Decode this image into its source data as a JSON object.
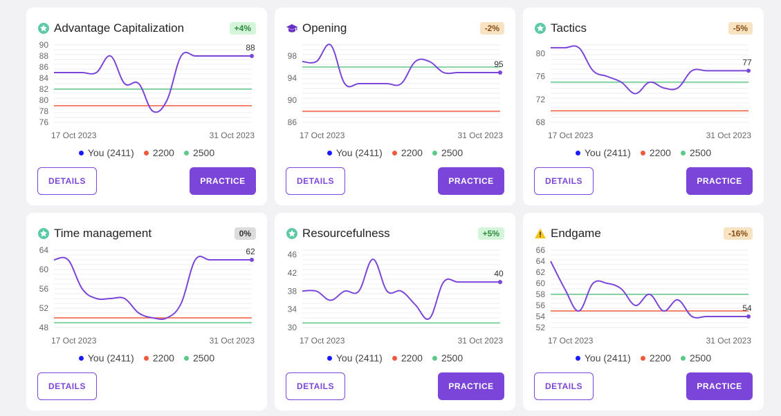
{
  "legend": {
    "you": "You (2411)",
    "r2200": "2200",
    "r2500": "2500",
    "colors": {
      "you": "#1a1aff",
      "r2200": "#f05a3c",
      "r2500": "#5cc98a"
    }
  },
  "buttons": {
    "details": "DETAILS",
    "practice": "PRACTICE"
  },
  "colors": {
    "line": "#7a45d8",
    "ref2200": "#f05a3c",
    "ref2500": "#5cc98a"
  },
  "cards": [
    {
      "title": "Advantage Capitalization",
      "icon": "star-badge-icon",
      "badge": "+4%",
      "badge_kind": "pos",
      "has_practice": true,
      "chart_data": {
        "type": "line",
        "x_start": "17 Oct 2023",
        "x_end": "31 Oct 2023",
        "yticks": [
          76,
          78,
          80,
          82,
          84,
          86,
          88,
          90
        ],
        "ylim": [
          76,
          90
        ],
        "values": [
          85,
          85,
          85,
          85,
          88,
          83,
          83,
          78,
          80,
          88,
          88,
          88,
          88,
          88,
          88
        ],
        "ref2200": 79,
        "ref2500": 82,
        "last_label": "88"
      }
    },
    {
      "title": "Opening",
      "icon": "graduation-cap-icon",
      "badge": "-2%",
      "badge_kind": "neg",
      "has_practice": true,
      "chart_data": {
        "type": "line",
        "x_start": "17 Oct 2023",
        "x_end": "31 Oct 2023",
        "yticks": [
          86,
          90,
          94,
          98
        ],
        "ylim": [
          86,
          100
        ],
        "values": [
          97,
          97,
          100,
          93,
          93,
          93,
          93,
          93,
          97,
          97,
          95,
          95,
          95,
          95,
          95
        ],
        "ref2200": 88,
        "ref2500": 96,
        "last_label": "95"
      }
    },
    {
      "title": "Tactics",
      "icon": "star-badge-icon",
      "badge": "-5%",
      "badge_kind": "neg",
      "has_practice": true,
      "chart_data": {
        "type": "line",
        "x_start": "17 Oct 2023",
        "x_end": "31 Oct 2023",
        "yticks": [
          68,
          72,
          76,
          80
        ],
        "ylim": [
          68,
          81.5
        ],
        "values": [
          81,
          81,
          81,
          77,
          76,
          75,
          73,
          75,
          74,
          74,
          77,
          77,
          77,
          77,
          77
        ],
        "ref2200": 70,
        "ref2500": 75,
        "last_label": "77"
      }
    },
    {
      "title": "Time management",
      "icon": "star-badge-icon",
      "badge": "0%",
      "badge_kind": "neu",
      "has_practice": false,
      "chart_data": {
        "type": "line",
        "x_start": "17 Oct 2023",
        "x_end": "31 Oct 2023",
        "yticks": [
          48,
          52,
          56,
          60,
          64
        ],
        "ylim": [
          48,
          64
        ],
        "values": [
          62,
          62,
          56,
          54,
          54,
          54,
          51,
          50,
          50,
          53,
          62,
          62,
          62,
          62,
          62
        ],
        "ref2200": 50,
        "ref2500": 49,
        "last_label": "62"
      }
    },
    {
      "title": "Resourcefulness",
      "icon": "star-badge-icon",
      "badge": "+5%",
      "badge_kind": "pos",
      "has_practice": true,
      "chart_data": {
        "type": "line",
        "x_start": "17 Oct 2023",
        "x_end": "31 Oct 2023",
        "yticks": [
          30,
          34,
          38,
          42,
          46
        ],
        "ylim": [
          30,
          47
        ],
        "values": [
          38,
          38,
          36,
          38,
          38,
          45,
          38,
          38,
          35,
          32,
          40,
          40,
          40,
          40,
          40
        ],
        "ref2200": null,
        "ref2500": 31,
        "last_label": "40"
      }
    },
    {
      "title": "Endgame",
      "icon": "warning-icon",
      "badge": "-16%",
      "badge_kind": "neg",
      "has_practice": true,
      "chart_data": {
        "type": "line",
        "x_start": "17 Oct 2023",
        "x_end": "31 Oct 2023",
        "yticks": [
          52,
          54,
          56,
          58,
          60,
          62,
          64,
          66
        ],
        "ylim": [
          52,
          66
        ],
        "values": [
          64,
          59,
          55,
          60,
          60,
          59,
          56,
          58,
          55,
          57,
          54,
          54,
          54,
          54,
          54
        ],
        "ref2200": 55,
        "ref2500": 58,
        "last_label": "54"
      }
    }
  ]
}
